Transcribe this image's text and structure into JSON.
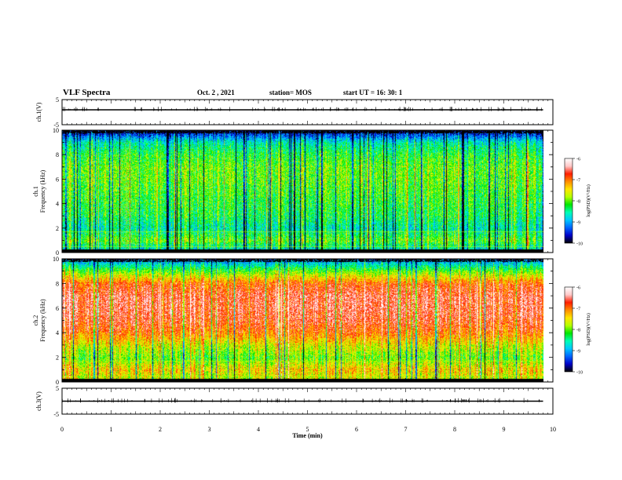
{
  "header": {
    "title": "VLF Spectra",
    "date": "Oct. 2  , 2021",
    "station": "station= MOS",
    "start_ut": "start  UT  =   16: 30: 1"
  },
  "colors": {
    "spectrum": [
      "#000000",
      "#0000c8",
      "#0064ff",
      "#00c8ff",
      "#00ffb4",
      "#00e600",
      "#b4ff00",
      "#ffe600",
      "#ff8c00",
      "#ff1e00",
      "#ffc8c8",
      "#ffffff"
    ],
    "axis": "#000000",
    "background": "#ffffff"
  },
  "chart_data": [
    {
      "type": "line",
      "id": "ch1-waveform",
      "ylabel": "ch.1(V)",
      "ylim": [
        -5,
        5
      ],
      "yticks": [
        "5",
        "-5"
      ],
      "approx_level": 0,
      "xlim": [
        0,
        10
      ]
    },
    {
      "type": "heatmap",
      "id": "ch1-spectrogram",
      "ylabel_lines": [
        "ch.1",
        "Frequency  (kHz)"
      ],
      "ylim": [
        0,
        10
      ],
      "yticks": [
        "0",
        "2",
        "4",
        "6",
        "8",
        "10"
      ],
      "xlim": [
        0,
        10
      ],
      "data_extent_min": 9.8,
      "colorbar": {
        "label": "log(PSD)(V²/Hz)",
        "range": [
          -10,
          -6
        ],
        "ticks": [
          "-6",
          "-7",
          "-8",
          "-9",
          "-10"
        ]
      },
      "dominant_level_log": -8.2,
      "frequency_profile_log": [
        -9.0,
        -8.0,
        -8.6,
        -8.3,
        -8.2,
        -8.1,
        -8.0,
        -8.0,
        -8.2,
        -8.6,
        -9.8
      ]
    },
    {
      "type": "heatmap",
      "id": "ch2-spectrogram",
      "ylabel_lines": [
        "ch.2",
        "Frequency  (kHz)"
      ],
      "ylim": [
        0,
        10
      ],
      "yticks": [
        "0",
        "2",
        "4",
        "6",
        "8",
        "10"
      ],
      "xlim": [
        0,
        10
      ],
      "data_extent_min": 9.8,
      "colorbar": {
        "label": "log(PSD)(V²/Hz)",
        "range": [
          -10,
          -6
        ],
        "ticks": [
          "-6",
          "-7",
          "-8",
          "-9",
          "-10"
        ]
      },
      "dominant_level_log": -6.8,
      "frequency_profile_log": [
        -7.8,
        -7.4,
        -8.0,
        -7.6,
        -7.0,
        -6.7,
        -6.6,
        -6.6,
        -6.9,
        -8.0,
        -9.2
      ]
    },
    {
      "type": "line",
      "id": "ch3-waveform",
      "ylabel": "ch.3(V)",
      "ylim": [
        -5,
        5
      ],
      "yticks": [
        "5",
        "-5"
      ],
      "approx_level": 0,
      "xlim": [
        0,
        10
      ]
    }
  ],
  "x_axis": {
    "label": "Time  (min)",
    "ticks": [
      "0",
      "1",
      "2",
      "3",
      "4",
      "5",
      "6",
      "7",
      "8",
      "9",
      "10"
    ]
  }
}
